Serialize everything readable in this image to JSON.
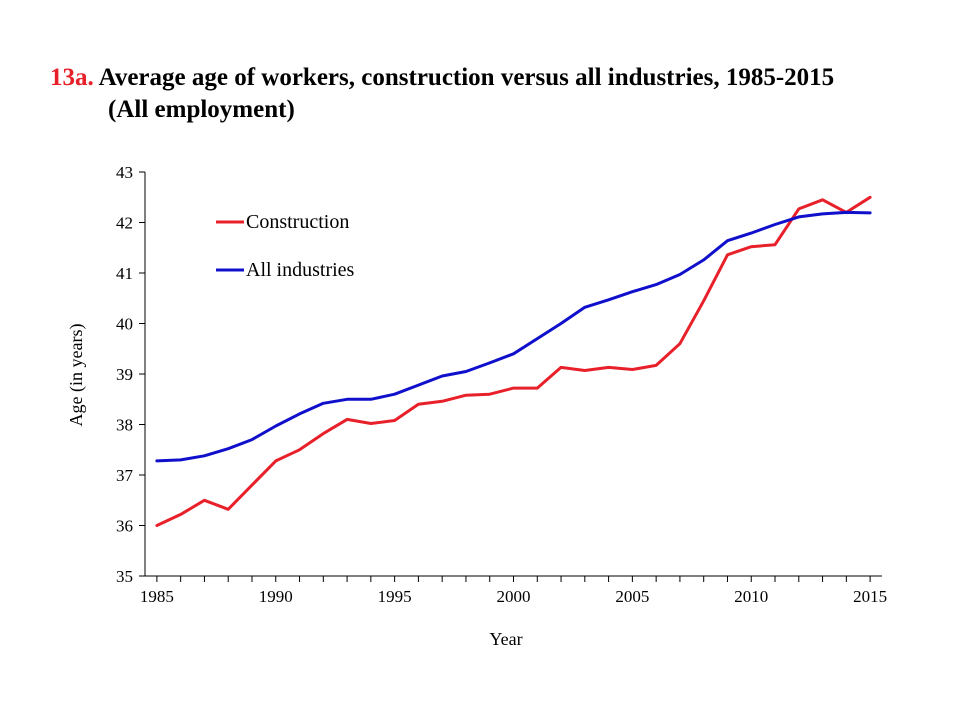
{
  "title": {
    "number": "13a.",
    "line1": "Average age of workers, construction versus all industries, 1985-2015",
    "line2": "(All employment)"
  },
  "chart_data": {
    "type": "line",
    "xlabel": "Year",
    "ylabel": "Age (in years)",
    "xlim": [
      1985,
      2015
    ],
    "ylim": [
      35,
      43
    ],
    "x_ticks": [
      1985,
      1990,
      1995,
      2000,
      2005,
      2010,
      2015
    ],
    "y_ticks": [
      35,
      36,
      37,
      38,
      39,
      40,
      41,
      42,
      43
    ],
    "grid": false,
    "legend_position": "top-left",
    "x": [
      1985,
      1986,
      1987,
      1988,
      1989,
      1990,
      1991,
      1992,
      1993,
      1994,
      1995,
      1996,
      1997,
      1998,
      1999,
      2000,
      2001,
      2002,
      2003,
      2004,
      2005,
      2006,
      2007,
      2008,
      2009,
      2010,
      2011,
      2012,
      2013,
      2014,
      2015
    ],
    "series": [
      {
        "name": "Construction",
        "color": "#e8202a",
        "values": [
          36.0,
          36.22,
          36.5,
          36.32,
          36.8,
          37.28,
          37.5,
          37.82,
          38.1,
          38.02,
          38.08,
          38.4,
          38.46,
          38.58,
          38.6,
          38.72,
          38.72,
          39.13,
          39.07,
          39.13,
          39.09,
          39.17,
          39.6,
          40.45,
          41.36,
          41.52,
          41.56,
          42.27,
          42.45,
          42.2,
          42.5
        ]
      },
      {
        "name": "All industries",
        "color": "#1010cc",
        "values": [
          37.28,
          37.3,
          37.38,
          37.52,
          37.7,
          37.97,
          38.21,
          38.42,
          38.5,
          38.5,
          38.6,
          38.78,
          38.96,
          39.05,
          39.22,
          39.4,
          39.7,
          40.0,
          40.32,
          40.47,
          40.63,
          40.77,
          40.97,
          41.26,
          41.64,
          41.79,
          41.96,
          42.11,
          42.17,
          42.2,
          42.19
        ]
      }
    ]
  }
}
